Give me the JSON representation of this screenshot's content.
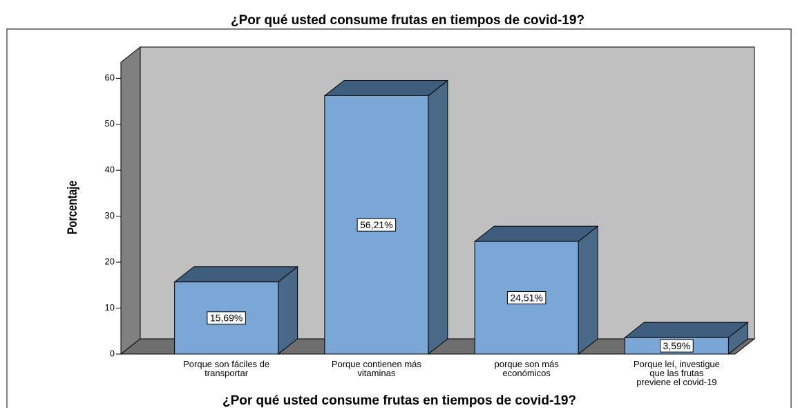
{
  "chart_data": {
    "type": "bar3d",
    "title": "¿Por qué usted consume frutas en tiempos de covid-19?",
    "x_label": "¿Por qué usted consume frutas en tiempos de covid-19?",
    "y_label": "Porcentaje",
    "categories": [
      "Porque son fáciles de\ntransportar",
      "Porque contienen más\nvitaminas",
      "porque son más\neconómicos",
      "Porque leí, investigue\nque las frutas\npreviene el covid-19"
    ],
    "values": [
      15.69,
      56.21,
      24.51,
      3.59
    ],
    "value_labels": [
      "15,69%",
      "56,21%",
      "24,51%",
      "3,59%"
    ],
    "color": "#7ba7d6",
    "ylim": [
      0,
      63.5
    ],
    "yticks": [
      0,
      10,
      20,
      30,
      40,
      50,
      60
    ]
  }
}
